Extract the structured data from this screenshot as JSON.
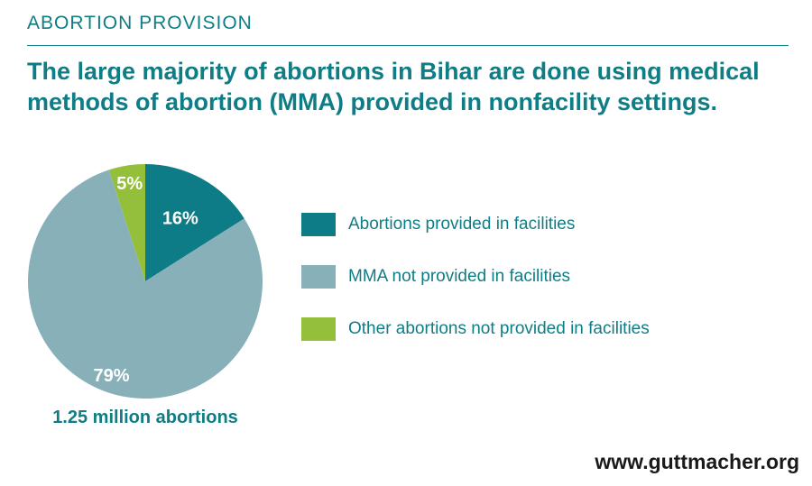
{
  "header": {
    "section_label": "ABORTION PROVISION",
    "headline": "The large majority of abortions in Bihar are done using medical methods of abortion (MMA) provided in nonfacility settings."
  },
  "caption": "1.25 million abortions",
  "website": "www.guttmacher.org",
  "chart_data": {
    "type": "pie",
    "title": "",
    "slices": [
      {
        "label": "Abortions provided in facilities",
        "value": 16,
        "display": "16%",
        "color": "#0e7c86"
      },
      {
        "label": "MMA not provided in facilities",
        "value": 79,
        "display": "79%",
        "color": "#88b0b8"
      },
      {
        "label": "Other abortions not provided in facilities",
        "value": 5,
        "display": "5%",
        "color": "#93bf3a"
      }
    ],
    "legend_position": "right"
  }
}
